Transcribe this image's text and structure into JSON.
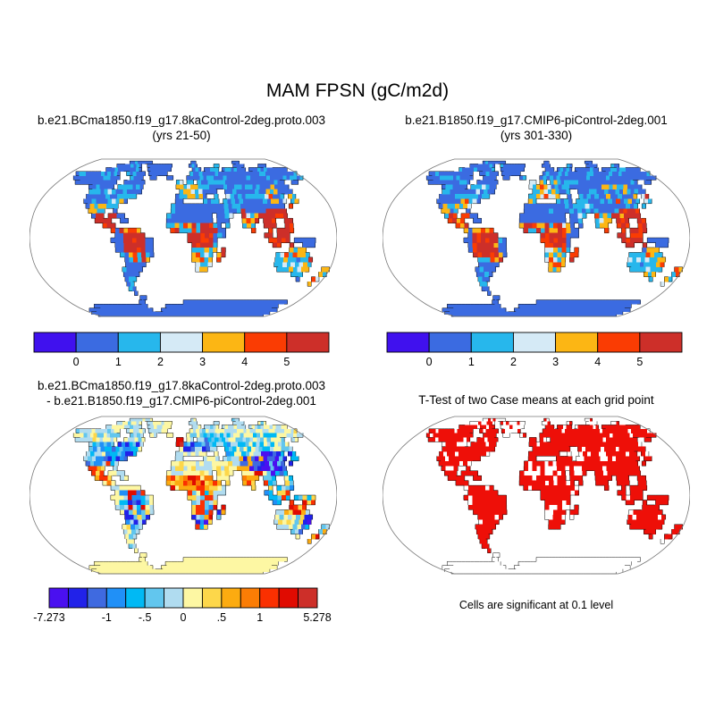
{
  "header": {
    "title": "MAM FPSN (gC/m2d)"
  },
  "panels": {
    "case1": {
      "title_line1": "b.e21.BCma1850.f19_g17.8kaControl-2deg.proto.003",
      "title_line2": "(yrs 21-50)"
    },
    "case2": {
      "title_line1": "b.e21.B1850.f19_g17.CMIP6-piControl-2deg.001",
      "title_line2": "(yrs 301-330)"
    },
    "diff": {
      "title_line1": "b.e21.BCma1850.f19_g17.8kaControl-2deg.proto.003",
      "title_line2": "- b.e21.B1850.f19_g17.CMIP6-piControl-2deg.001"
    },
    "ttest": {
      "title": "T-Test of two Case means at each grid point",
      "caption": "Cells are significant at 0.1 level"
    }
  },
  "chart_data": {
    "type": "heatmap",
    "subtype": "global-lat-lon-grid-maps",
    "projection": "robinson",
    "season": "MAM",
    "variable": "FPSN",
    "units": "gC/m2d",
    "colorbar_mean": {
      "colors": [
        "#4011ee",
        "#3b6be1",
        "#27b7ec",
        "#d5eaf6",
        "#fcb614",
        "#fa3c03",
        "#cd2f29"
      ],
      "tick_labels": [
        "0",
        "1",
        "2",
        "3",
        "4",
        "5"
      ],
      "tick_edges": [
        1,
        2,
        3,
        4,
        5,
        6
      ],
      "bins": "<0, 0-1, 1-2, 2-3, 3-4, 4-5, >5"
    },
    "colorbar_diff": {
      "colors": [
        "#4a10f0",
        "#2122e9",
        "#3f6ae0",
        "#2090f7",
        "#00b9f4",
        "#62c6ee",
        "#b0dcf0",
        "#fdf7a3",
        "#fdd74a",
        "#fcab10",
        "#fb7d05",
        "#fa3001",
        "#e00b01",
        "#cd2f29"
      ],
      "tick_labels": [
        "-7.273",
        "-1",
        "-.5",
        "0",
        ".5",
        "1",
        "5.278"
      ],
      "tick_edges": [
        0,
        3,
        5,
        7,
        9,
        11,
        14
      ],
      "min": -7.273,
      "max": 5.278
    },
    "ttest_fill_color": "#ee0f08",
    "coast_color": "#111111",
    "outline_color": "#777777",
    "land_mask": [
      "........................................................................",
      "...............XXXXXXXXX...............XX..............XXX..............",
      "............XXXXXXXXX..XXXXXXXXX......XXX......XX.....XXXX.....XXX......",
      "..........XXXXXXXXXXXX..XXXXXXXX.......XXX.XXXXX.XXXXXXXX.XXXXXXXXXXXXX.",
      "..XXXXXXXXXXXXXX..XXXXXX.XXXXXX.......XXXXXXXXXXXXXXXXXXXXXXXXXXXXXXXXXX",
      "...XXXXXXXXXXXXXX...XXXX..XX...XX....XXXXXXXXXXXXXXXXXXXXXXXXXXXXXXXXXXX",
      ".....XXXXXXXXXXXX..XXXXXX.........XX.XX.XXXXXXXXXXXXXXXXXXXXXXXXX..XX...",
      "..........XXXXXXX.XXXXXXX.........XXXXXXXXXXXXXXXXXXXXXXXXXXXXXXX.......",
      "...........XXXXXXXXXXXXXX..........XXXXXXXXXX..XXXXXXXXXXXXXXXXXX.......",
      "...........XXXXXXXXXXXXX..........XXXXXXXX..X..XXXXXXXXXXXXXXX.XX.......",
      "...........XXXXXXXXXXX............XX.....XXXX.XXXXXXXXXXXXXXXX.XX.......",
      "............XXXXXXXX.............XXXXXXXXXXXXXXXXXXXXXXXXXXXX.X.........",
      ".............XXXX..X.............XXXXXXXXXXXXXXXXXXXXXXXXXXXX...........",
      "..............XXX.XXXX..........XXXXXXXXXXX.XXXX..XXXXXXXXXXX...........",
      "...............XXXX..XX.........XXXXXXXXXXX.XXX...XXXX.XXX..XX..........",
      ".................XXX............XXXXXXXXXXXXX.X...XXX..XXX..XX..........",
      "...................XXXXXXX.......XXXXXXXXXXXXX......X...X.XXXX..........",
      "....................XXXXXXX..........XXXXXXXXX.........XX.XXX...........",
      "...................XXXXXXXXXX........XXXXXXX............XXXXX.XXXXX.....",
      "....................XXXXXXXXX.........XXXXXX.............XX..X..XXX.....",
      "....................XXXXXXXXX.........XXXXXX.X...............XXXX.......",
      ".....................XXXXXXXX.........XXXXX.XX............XXXXXXXX......",
      "......................XXXXXX..........XXXXX.X.............XXXXXXXXX.....",
      "......................XXXXX............XXXX...............XXXXXXXXX.....",
      ".....................XXXXX.............XXX.................XXXXXXXX...XX",
      ".....................XXXX......................................XXX....XX",
      ".....................XXX.........................................X...XX.",
      ".....................XX..............................................X..",
      ".....................XX.................................................",
      "......................X.................................................",
      ".......................XX...............................................",
      "......................XX............XXXXXXXXXXXXXXXXXXXXXXXXXXXXXXXXX...",
      "......XXXXXXXXXXXXXXXXXX......XXXXXXXXXXXXXXXXXXXXXXXXXXXXXXXXXXXXXX....",
      "..XXXXXXXXXXXXXXXXXXXXXXX...XXXXXXXXXXXXXXXXXXXXXXXXXXXXXXXXXXXXXXXXXX..",
      "XXXXXXXXXXXXXXXXXXXXXXXXXXXXXXXXXXXXXXXXXXXXXXXXXXXXXXXXXXXXXXXXXXXXXX",
      "XXXXXXXXXXXXXXXXXXXXXXXXXXXXXXXXXXXXXXXXXXXXXXXXXXXXXXXXXXXXXXXXXXXXXX"
    ],
    "patterns": {
      "mean_rules": [
        [
          -180,
          180,
          -90,
          -62,
          [
            1
          ],
          0
        ],
        [
          -62,
          -18,
          59,
          84,
          [
            1
          ],
          0
        ],
        [
          -180,
          180,
          62,
          90,
          [
            1,
            1,
            1,
            1,
            2
          ],
          0
        ],
        [
          74,
          100,
          27,
          39,
          [
            1
          ],
          1
        ],
        [
          -71,
          -47,
          -13,
          3,
          [
            6,
            6,
            6,
            5
          ],
          1
        ],
        [
          -77,
          -52,
          3,
          13,
          [
            6,
            5,
            5,
            4
          ],
          1
        ],
        [
          -106,
          -82,
          7,
          23,
          [
            5,
            6,
            4
          ],
          1
        ],
        [
          -114,
          -96,
          23,
          33,
          [
            2,
            4,
            1,
            4
          ],
          1
        ],
        [
          -96,
          -74,
          28,
          41,
          [
            2,
            3,
            4,
            2
          ],
          1
        ],
        [
          -126,
          -96,
          30,
          50,
          [
            1,
            1,
            2
          ],
          1
        ],
        [
          -96,
          -58,
          41,
          56,
          [
            1,
            2,
            2
          ],
          1
        ],
        [
          -132,
          -58,
          50,
          62,
          [
            1
          ],
          1
        ],
        [
          -66,
          -38,
          -27,
          -13,
          [
            2,
            4,
            5,
            2,
            6
          ],
          1
        ],
        [
          -76,
          -64,
          -42,
          -13,
          [
            1,
            2
          ],
          1
        ],
        [
          -76,
          -58,
          -56,
          -36,
          [
            1,
            1,
            2
          ],
          1
        ],
        [
          6,
          34,
          -9,
          7,
          [
            6,
            6,
            5
          ],
          1
        ],
        [
          -18,
          40,
          6,
          15,
          [
            5,
            4,
            6,
            2
          ],
          1
        ],
        [
          -18,
          38,
          15,
          31,
          [
            1
          ],
          1
        ],
        [
          8,
          42,
          -36,
          -8,
          [
            2,
            3,
            4,
            2,
            5
          ],
          1
        ],
        [
          42,
          52,
          -27,
          -10,
          [
            6,
            4,
            5
          ],
          1
        ],
        [
          34,
          62,
          11,
          33,
          [
            1,
            1,
            2
          ],
          1
        ],
        [
          44,
          70,
          25,
          40,
          [
            1,
            2
          ],
          1
        ],
        [
          66,
          92,
          7,
          29,
          [
            5,
            6,
            4,
            2
          ],
          1
        ],
        [
          90,
          132,
          -12,
          29,
          [
            6,
            6,
            6,
            5
          ],
          1
        ],
        [
          124,
          148,
          29,
          47,
          [
            2,
            4,
            5
          ],
          1
        ],
        [
          84,
          126,
          35,
          56,
          [
            1,
            1,
            2,
            4
          ],
          1
        ],
        [
          38,
          86,
          33,
          56,
          [
            1,
            1,
            2
          ],
          1
        ],
        [
          -12,
          26,
          43,
          59,
          [
            2,
            2,
            4,
            3
          ],
          1
        ],
        [
          -12,
          42,
          34,
          44,
          [
            2,
            4,
            1,
            2
          ],
          1
        ],
        [
          24,
          62,
          48,
          66,
          [
            1,
            2,
            2
          ],
          1
        ],
        [
          120,
          147,
          -19,
          -9,
          [
            4,
            5,
            2
          ],
          1
        ],
        [
          143,
          155,
          -36,
          -19,
          [
            4,
            5,
            2,
            6
          ],
          1
        ],
        [
          112,
          150,
          -33,
          -17,
          [
            2,
            3,
            2,
            2
          ],
          1
        ],
        [
          112,
          152,
          -41,
          -33,
          [
            2,
            2,
            4
          ],
          1
        ],
        [
          163,
          180,
          -49,
          -32,
          [
            4,
            2,
            5
          ],
          1
        ]
      ],
      "mean1": {
        "seed": 7,
        "default": [
          1
        ],
        "clamp": [
          1,
          6
        ],
        "noise_p": 0.1
      },
      "mean2": {
        "seed": 55,
        "default": [
          1
        ],
        "clamp": [
          1,
          6
        ],
        "noise_p": 0.1,
        "prepend": [
          [
            -75,
            -44,
            -19,
            4,
            [
              6,
              6,
              6,
              6,
              5
            ],
            1
          ],
          [
            -12,
            30,
            42,
            59,
            [
              2,
              4,
              4,
              3,
              2
            ],
            1
          ]
        ]
      },
      "diff": {
        "seed": 13,
        "default": [
          6,
          7
        ],
        "clamp": [
          0,
          13
        ],
        "noise_p": 0.12,
        "rules": [
          [
            -180,
            180,
            -90,
            -62,
            [
              7
            ],
            0
          ],
          [
            -62,
            -18,
            59,
            84,
            [
              7,
              7,
              6
            ],
            0
          ],
          [
            -180,
            180,
            66,
            90,
            [
              7,
              6,
              6
            ],
            1
          ],
          [
            -12,
            2,
            48,
            60,
            [
              12,
              13,
              11
            ],
            1
          ],
          [
            70,
            102,
            26,
            39,
            [
              1,
              0,
              2,
              9
            ],
            1
          ],
          [
            4,
            32,
            57,
            67,
            [
              6,
              7,
              5
            ],
            1
          ],
          [
            -2,
            36,
            43,
            58,
            [
              1,
              2,
              3,
              5,
              1
            ],
            1
          ],
          [
            -102,
            -62,
            33,
            53,
            [
              1,
              2,
              4,
              3,
              5
            ],
            1
          ],
          [
            -127,
            -102,
            31,
            56,
            [
              5,
              6,
              4,
              3
            ],
            1
          ],
          [
            -132,
            -58,
            53,
            66,
            [
              6,
              5,
              7
            ],
            1
          ],
          [
            -168,
            -138,
            56,
            66,
            [
              6,
              7,
              5
            ],
            1
          ],
          [
            -114,
            -83,
            11,
            33,
            [
              7,
              8,
              5,
              11,
              9
            ],
            1
          ],
          [
            -73,
            -44,
            -16,
            4,
            [
              4,
              5,
              6,
              1,
              3,
              12
            ],
            1
          ],
          [
            -72,
            -38,
            -36,
            -16,
            [
              5,
              6,
              3,
              1,
              8
            ],
            1
          ],
          [
            -76,
            -58,
            -56,
            -36,
            [
              6,
              7,
              5
            ],
            1
          ],
          [
            -18,
            40,
            7,
            21,
            [
              8,
              9,
              10,
              11,
              12,
              7
            ],
            1
          ],
          [
            -12,
            32,
            21,
            33,
            [
              6,
              7,
              7,
              8
            ],
            1
          ],
          [
            6,
            34,
            -9,
            7,
            [
              5,
              4,
              8,
              6,
              11
            ],
            1
          ],
          [
            8,
            44,
            -36,
            -9,
            [
              5,
              1,
              8,
              11,
              3,
              12
            ],
            1
          ],
          [
            42,
            52,
            -27,
            -10,
            [
              9,
              12,
              5
            ],
            1
          ],
          [
            34,
            62,
            11,
            33,
            [
              7,
              7,
              8
            ],
            1
          ],
          [
            66,
            94,
            7,
            29,
            [
              7,
              8,
              9,
              12
            ],
            1
          ],
          [
            124,
            148,
            29,
            47,
            [
              2,
              4,
              1,
              5
            ],
            1
          ],
          [
            98,
            132,
            21,
            46,
            [
              1,
              2,
              4,
              0,
              5
            ],
            1
          ],
          [
            128,
            154,
            -12,
            1,
            [
              4,
              11,
              8,
              5
            ],
            1
          ],
          [
            92,
            132,
            -12,
            21,
            [
              4,
              5,
              8,
              11,
              3
            ],
            1
          ],
          [
            44,
            86,
            33,
            53,
            [
              6,
              5,
              7,
              4
            ],
            1
          ],
          [
            58,
            142,
            46,
            63,
            [
              5,
              6,
              4,
              7
            ],
            1
          ],
          [
            58,
            180,
            63,
            75,
            [
              6,
              7,
              5
            ],
            1
          ],
          [
            28,
            58,
            46,
            66,
            [
              5,
              4,
              6
            ],
            1
          ],
          [
            118,
            147,
            -18,
            -9,
            [
              10,
              11,
              12,
              8
            ],
            1
          ],
          [
            143,
            155,
            -39,
            -18,
            [
              1,
              2,
              4,
              9
            ],
            1
          ],
          [
            112,
            150,
            -34,
            -18,
            [
              6,
              7,
              6,
              8
            ],
            1
          ],
          [
            112,
            152,
            -41,
            -34,
            [
              6,
              7,
              5
            ],
            1
          ],
          [
            163,
            180,
            -49,
            -32,
            [
              5,
              9,
              12
            ],
            1
          ]
        ]
      },
      "ttest": {
        "seed": 5,
        "default_p": 0.87,
        "rules": [
          [
            -180,
            180,
            -90,
            -60,
            0
          ],
          [
            -60,
            -20,
            60,
            84,
            0.15
          ],
          [
            -180,
            180,
            76,
            90,
            0.3
          ],
          [
            -75,
            -45,
            -18,
            5,
            0.97
          ],
          [
            8,
            32,
            -10,
            8,
            0.97
          ],
          [
            92,
            152,
            -12,
            8,
            0.95
          ],
          [
            -12,
            32,
            16,
            30,
            0.45
          ],
          [
            44,
            92,
            36,
            52,
            0.6
          ],
          [
            36,
            60,
            20,
            32,
            0.55
          ]
        ]
      }
    }
  }
}
